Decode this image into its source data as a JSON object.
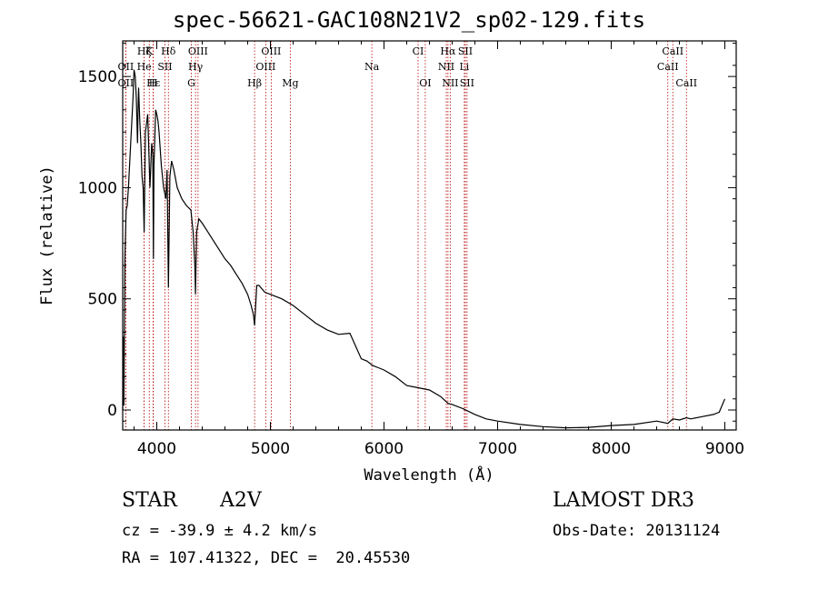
{
  "chart_data": {
    "type": "line",
    "title": "spec-56621-GAC108N21V2_sp02-129.fits",
    "xlabel": "Wavelength (Å)",
    "ylabel": "Flux (relative)",
    "xlim": [
      3700,
      9100
    ],
    "ylim": [
      -90,
      1660
    ],
    "xticks": [
      4000,
      5000,
      6000,
      7000,
      8000,
      9000
    ],
    "yticks": [
      0,
      500,
      1000,
      1500
    ],
    "series": [
      {
        "name": "spectrum",
        "x": [
          3700,
          3705,
          3710,
          3720,
          3730,
          3740,
          3750,
          3770,
          3790,
          3800,
          3810,
          3820,
          3830,
          3835,
          3840,
          3850,
          3860,
          3870,
          3880,
          3889,
          3900,
          3920,
          3940,
          3955,
          3965,
          3970,
          3975,
          3990,
          4000,
          4010,
          4020,
          4040,
          4060,
          4080,
          4090,
          4102,
          4115,
          4130,
          4150,
          4180,
          4220,
          4260,
          4300,
          4320,
          4335,
          4341,
          4350,
          4370,
          4400,
          4450,
          4500,
          4550,
          4600,
          4650,
          4700,
          4750,
          4800,
          4830,
          4850,
          4861,
          4870,
          4880,
          4900,
          4950,
          5000,
          5100,
          5200,
          5300,
          5400,
          5500,
          5600,
          5700,
          5800,
          5850,
          5900,
          5950,
          6000,
          6100,
          6200,
          6300,
          6400,
          6500,
          6563,
          6600,
          6700,
          6800,
          6900,
          7000,
          7200,
          7400,
          7600,
          7800,
          8000,
          8200,
          8400,
          8498,
          8542,
          8600,
          8662,
          8700,
          8800,
          8900,
          8950,
          9000
        ],
        "y": [
          0,
          330,
          20,
          700,
          900,
          920,
          1000,
          1200,
          1400,
          1530,
          1500,
          1400,
          1200,
          1350,
          1450,
          1300,
          1200,
          1050,
          1000,
          800,
          1250,
          1330,
          1000,
          1200,
          1150,
          680,
          1100,
          1350,
          1330,
          1300,
          1250,
          1100,
          1000,
          950,
          1080,
          550,
          1050,
          1120,
          1080,
          1000,
          950,
          920,
          900,
          800,
          650,
          520,
          800,
          860,
          840,
          800,
          760,
          720,
          680,
          650,
          610,
          570,
          520,
          470,
          430,
          380,
          470,
          560,
          560,
          530,
          520,
          500,
          470,
          430,
          390,
          360,
          340,
          345,
          230,
          220,
          200,
          190,
          180,
          150,
          110,
          100,
          90,
          60,
          30,
          25,
          5,
          -20,
          -40,
          -50,
          -65,
          -75,
          -80,
          -78,
          -70,
          -65,
          -50,
          -60,
          -40,
          -45,
          -35,
          -40,
          -30,
          -20,
          -10,
          50
        ]
      }
    ],
    "lines": [
      {
        "label": "Hζ",
        "x": 3889,
        "row": 0
      },
      {
        "label": "K",
        "x": 3934,
        "row": 0
      },
      {
        "label": "Hδ",
        "x": 4102,
        "row": 0
      },
      {
        "label": "OIII",
        "x": 4363,
        "row": 0
      },
      {
        "label": "OIII",
        "x": 5007,
        "row": 0
      },
      {
        "label": "CI",
        "x": 6300,
        "row": 0
      },
      {
        "label": "Hα",
        "x": 6563,
        "row": 0
      },
      {
        "label": "SII",
        "x": 6716,
        "row": 0
      },
      {
        "label": "CaII",
        "x": 8542,
        "row": 0
      },
      {
        "label": "OII",
        "x": 3727,
        "row": 1
      },
      {
        "label": "He",
        "x": 3889,
        "row": 1
      },
      {
        "label": "SII",
        "x": 4072,
        "row": 1
      },
      {
        "label": "Hγ",
        "x": 4341,
        "row": 1
      },
      {
        "label": "OIII",
        "x": 4959,
        "row": 1
      },
      {
        "label": "Na",
        "x": 5893,
        "row": 1
      },
      {
        "label": "NII",
        "x": 6548,
        "row": 1
      },
      {
        "label": "Li",
        "x": 6707,
        "row": 1
      },
      {
        "label": "CaII",
        "x": 8498,
        "row": 1
      },
      {
        "label": "OII",
        "x": 3727,
        "row": 2
      },
      {
        "label": "Hε",
        "x": 3970,
        "row": 2
      },
      {
        "label": "H",
        "x": 3968,
        "row": 2
      },
      {
        "label": "G",
        "x": 4304,
        "row": 2
      },
      {
        "label": "Hβ",
        "x": 4861,
        "row": 2
      },
      {
        "label": "Mg",
        "x": 5175,
        "row": 2
      },
      {
        "label": "OI",
        "x": 6363,
        "row": 2
      },
      {
        "label": "NII",
        "x": 6583,
        "row": 2
      },
      {
        "label": "SII",
        "x": 6731,
        "row": 2
      },
      {
        "label": "CaII",
        "x": 8662,
        "row": 2
      }
    ]
  },
  "info": {
    "object_class": "STAR",
    "subclass": "A2V",
    "survey": "LAMOST DR3",
    "redshift": "cz = -39.9 ± 4.2 km/s",
    "obs_date": "Obs-Date: 20131124",
    "coords": "RA = 107.41322, DEC =  20.45530"
  }
}
